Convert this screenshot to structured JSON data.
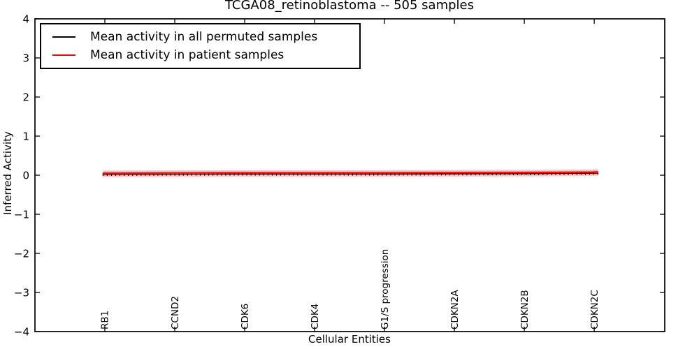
{
  "chart_data": {
    "type": "line",
    "title": "TCGA08_retinoblastoma -- 505 samples",
    "xlabel": "Cellular Entities",
    "ylabel": "Inferred Activity",
    "ylim": [
      -4,
      4
    ],
    "yticks": [
      -4,
      -3,
      -2,
      -1,
      0,
      1,
      2,
      3,
      4
    ],
    "ytick_labels": [
      "−4",
      "−3",
      "−2",
      "−1",
      "0",
      "1",
      "2",
      "3",
      "4"
    ],
    "x_tick_labels": [
      "RB1",
      "CCND2",
      "CDK6",
      "CDK4",
      "G1/S progression",
      "CDKN2A",
      "CDKN2B",
      "CDKN2C"
    ],
    "x_tick_pos": [
      0.111,
      0.222,
      0.333,
      0.444,
      0.555,
      0.666,
      0.777,
      0.888
    ],
    "grid": false,
    "legend_position": "upper left",
    "legend": [
      {
        "label": "Mean activity in all permuted samples",
        "color": "#000000"
      },
      {
        "label": "Mean activity in patient samples",
        "color": "#ff0000"
      }
    ],
    "series": [
      {
        "name": "Mean activity in all permuted samples",
        "color": "#000000",
        "marker": "tick",
        "points": [
          [
            0.108,
            0.02
          ],
          [
            0.3,
            0.03
          ],
          [
            0.55,
            0.03
          ],
          [
            0.8,
            0.04
          ],
          [
            0.886,
            0.05
          ],
          [
            0.894,
            0.05
          ]
        ]
      },
      {
        "name": "Mean activity in patient samples",
        "color": "#ff0000",
        "marker": "none",
        "points": [
          [
            0.108,
            0.05
          ],
          [
            0.3,
            0.06
          ],
          [
            0.55,
            0.06
          ],
          [
            0.8,
            0.07
          ],
          [
            0.886,
            0.08
          ],
          [
            0.894,
            0.09
          ]
        ]
      }
    ],
    "band": {
      "color": "#ff0000",
      "outer_opacity": 0.22,
      "inner_opacity": 0.28,
      "outer_halfwidth": 0.085,
      "inner_halfwidth": 0.045
    },
    "n_markers": 118,
    "axis_color": "#000000"
  }
}
